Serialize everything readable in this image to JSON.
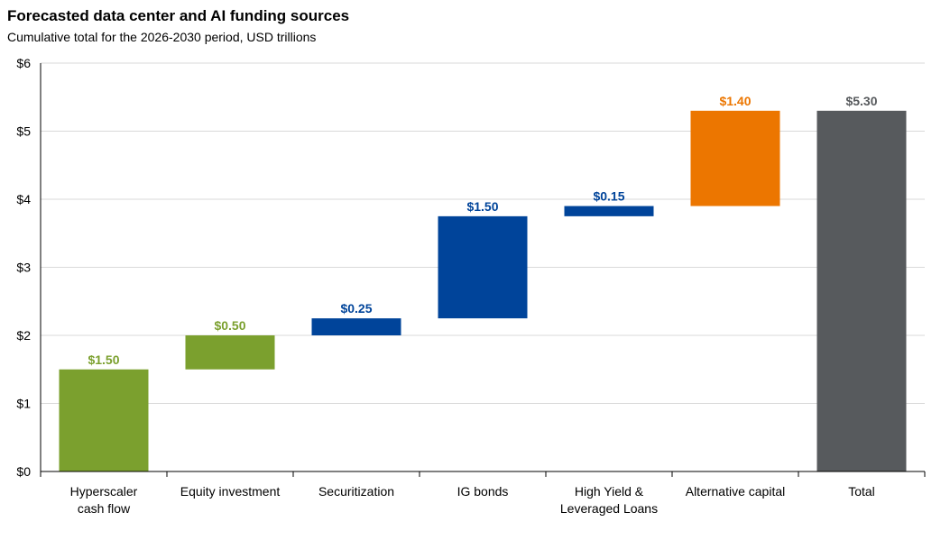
{
  "chart_data": {
    "type": "bar",
    "subtype": "waterfall",
    "title": "Forecasted data center and AI funding sources",
    "subtitle": "Cumulative total for the 2026-2030 period, USD trillions",
    "xlabel": "",
    "ylabel": "",
    "ylim": [
      0,
      6
    ],
    "yticks": [
      "$0",
      "$1",
      "$2",
      "$3",
      "$4",
      "$5",
      "$6"
    ],
    "grid": true,
    "legend": "none",
    "categories": [
      {
        "lines": [
          "Hyperscaler",
          "cash flow"
        ]
      },
      {
        "lines": [
          "Equity investment"
        ]
      },
      {
        "lines": [
          "Securitization"
        ]
      },
      {
        "lines": [
          "IG bonds"
        ]
      },
      {
        "lines": [
          "High Yield &",
          "Leveraged Loans"
        ]
      },
      {
        "lines": [
          "Alternative capital"
        ]
      },
      {
        "lines": [
          "Total"
        ]
      }
    ],
    "bars": [
      {
        "base": 0,
        "value": 1.5,
        "label": "$1.50",
        "color": "#7ba02e"
      },
      {
        "base": 1.5,
        "value": 0.5,
        "label": "$0.50",
        "color": "#7ba02e"
      },
      {
        "base": 2.0,
        "value": 0.25,
        "label": "$0.25",
        "color": "#00449a"
      },
      {
        "base": 2.25,
        "value": 1.5,
        "label": "$1.50",
        "color": "#00449a"
      },
      {
        "base": 3.75,
        "value": 0.15,
        "label": "$0.15",
        "color": "#00449a"
      },
      {
        "base": 3.9,
        "value": 1.4,
        "label": "$1.40",
        "color": "#ec7600"
      },
      {
        "base": 0,
        "value": 5.3,
        "label": "$5.30",
        "color": "#575a5d"
      }
    ]
  }
}
